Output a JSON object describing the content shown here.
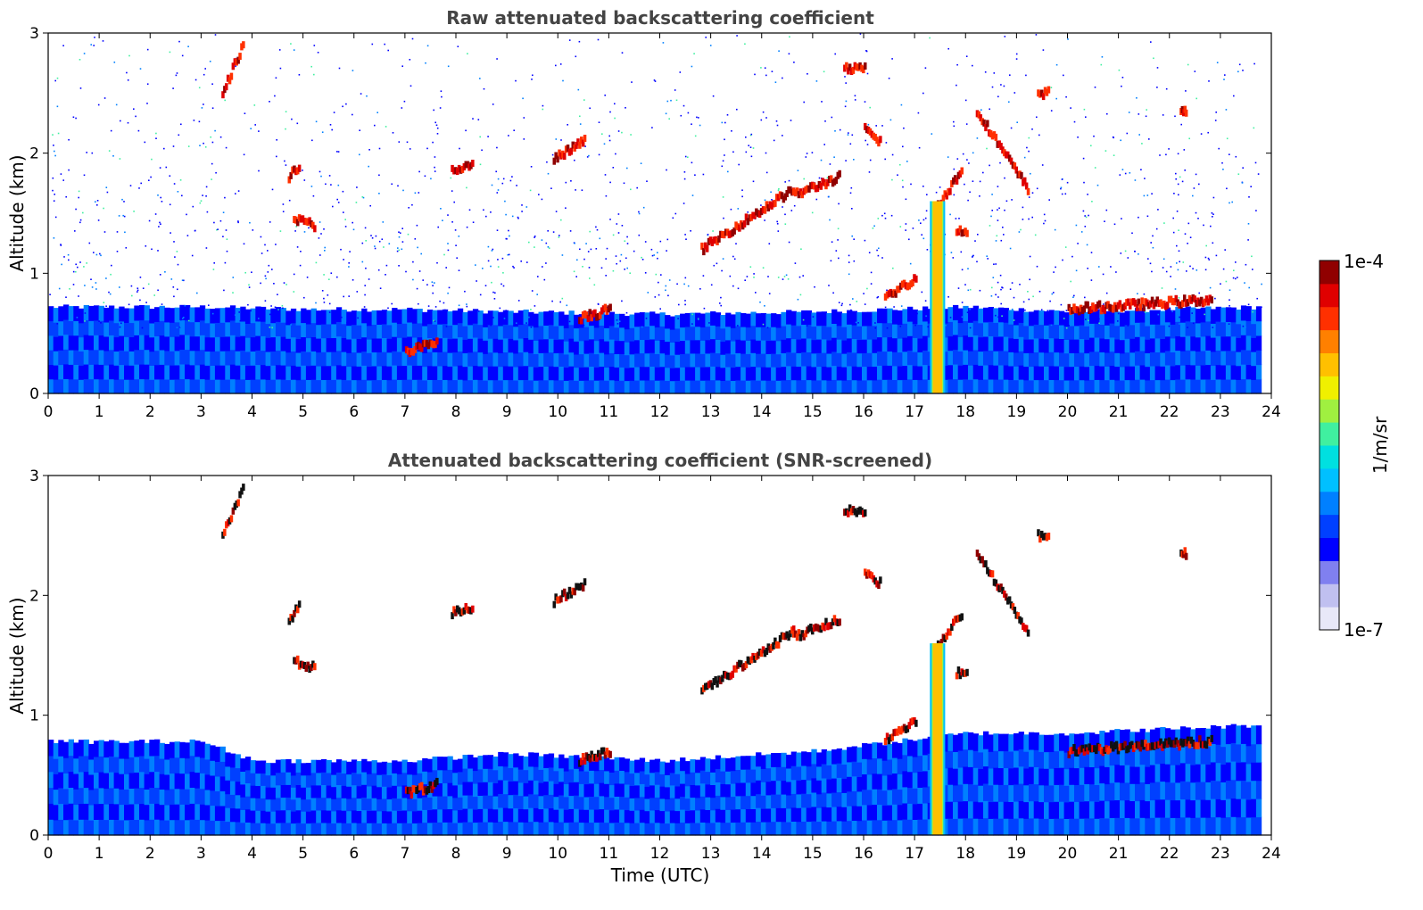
{
  "chart_data": [
    {
      "type": "heatmap",
      "title": "Raw attenuated backscattering coefficient",
      "xlabel": "",
      "ylabel": "Altitude (km)",
      "xlim": [
        0,
        24
      ],
      "ylim": [
        0,
        3
      ],
      "xticks": [
        "0",
        "1",
        "2",
        "3",
        "4",
        "5",
        "6",
        "7",
        "8",
        "9",
        "10",
        "11",
        "12",
        "13",
        "14",
        "15",
        "16",
        "17",
        "18",
        "19",
        "20",
        "21",
        "22",
        "23",
        "24"
      ],
      "yticks": [
        "0",
        "1",
        "2",
        "3"
      ],
      "noise": {
        "threshold_low": 0.55,
        "threshold_high": 3.0,
        "density_top": 0.75
      },
      "boundary_layer": [
        {
          "t": 0,
          "top": 0.72
        },
        {
          "t": 3,
          "top": 0.72
        },
        {
          "t": 5,
          "top": 0.7
        },
        {
          "t": 7,
          "top": 0.7
        },
        {
          "t": 9,
          "top": 0.68
        },
        {
          "t": 12,
          "top": 0.66
        },
        {
          "t": 15,
          "top": 0.68
        },
        {
          "t": 18,
          "top": 0.72
        },
        {
          "t": 20,
          "top": 0.68
        },
        {
          "t": 23.8,
          "top": 0.72
        }
      ],
      "cloud_segments": [
        {
          "t0": 3.4,
          "t1": 3.8,
          "alt0": 2.5,
          "alt1": 2.9
        },
        {
          "t0": 4.7,
          "t1": 4.9,
          "alt0": 1.8,
          "alt1": 1.9
        },
        {
          "t0": 4.8,
          "t1": 5.2,
          "alt0": 1.45,
          "alt1": 1.4
        },
        {
          "t0": 7.0,
          "t1": 7.6,
          "alt0": 0.35,
          "alt1": 0.42
        },
        {
          "t0": 7.9,
          "t1": 8.3,
          "alt0": 1.85,
          "alt1": 1.9
        },
        {
          "t0": 9.9,
          "t1": 10.5,
          "alt0": 1.95,
          "alt1": 2.1
        },
        {
          "t0": 10.4,
          "t1": 11.0,
          "alt0": 0.62,
          "alt1": 0.7
        },
        {
          "t0": 12.8,
          "t1": 14.6,
          "alt0": 1.2,
          "alt1": 1.7
        },
        {
          "t0": 14.6,
          "t1": 15.5,
          "alt0": 1.65,
          "alt1": 1.8
        },
        {
          "t0": 15.6,
          "t1": 16.0,
          "alt0": 2.7,
          "alt1": 2.7
        },
        {
          "t0": 16.0,
          "t1": 16.3,
          "alt0": 2.2,
          "alt1": 2.1
        },
        {
          "t0": 16.4,
          "t1": 17.0,
          "alt0": 0.8,
          "alt1": 0.95
        },
        {
          "t0": 17.4,
          "t1": 17.9,
          "alt0": 1.55,
          "alt1": 1.85
        },
        {
          "t0": 17.8,
          "t1": 18.0,
          "alt0": 1.35,
          "alt1": 1.35
        },
        {
          "t0": 18.2,
          "t1": 19.2,
          "alt0": 2.35,
          "alt1": 1.7
        },
        {
          "t0": 19.4,
          "t1": 19.6,
          "alt0": 2.5,
          "alt1": 2.5
        },
        {
          "t0": 20.0,
          "t1": 22.8,
          "alt0": 0.7,
          "alt1": 0.78
        },
        {
          "t0": 22.2,
          "t1": 22.3,
          "alt0": 2.35,
          "alt1": 2.35
        }
      ],
      "precip_column": {
        "t0": 17.3,
        "t1": 17.6,
        "top": 1.6
      }
    },
    {
      "type": "heatmap",
      "title": "Attenuated backscattering coefficient (SNR-screened)",
      "xlabel": "Time (UTC)",
      "ylabel": "Altitude (km)",
      "xlim": [
        0,
        24
      ],
      "ylim": [
        0,
        3
      ],
      "xticks": [
        "0",
        "1",
        "2",
        "3",
        "4",
        "5",
        "6",
        "7",
        "8",
        "9",
        "10",
        "11",
        "12",
        "13",
        "14",
        "15",
        "16",
        "17",
        "18",
        "19",
        "20",
        "21",
        "22",
        "23",
        "24"
      ],
      "yticks": [
        "0",
        "1",
        "2",
        "3"
      ],
      "boundary_layer": [
        {
          "t": 0,
          "top": 0.78
        },
        {
          "t": 3,
          "top": 0.78
        },
        {
          "t": 4,
          "top": 0.62
        },
        {
          "t": 7,
          "top": 0.62
        },
        {
          "t": 9,
          "top": 0.68
        },
        {
          "t": 12,
          "top": 0.62
        },
        {
          "t": 15,
          "top": 0.7
        },
        {
          "t": 18,
          "top": 0.85
        },
        {
          "t": 20,
          "top": 0.85
        },
        {
          "t": 23.8,
          "top": 0.92
        }
      ]
    }
  ],
  "colorbar": {
    "max_label": "1e-4",
    "min_label": "1e-7",
    "unit_label": "1/m/sr",
    "colors": [
      "#e8e8f8",
      "#c0c0f0",
      "#8080f0",
      "#0000ff",
      "#0040ff",
      "#0080ff",
      "#00c0ff",
      "#00e0e0",
      "#40f0a0",
      "#a0f040",
      "#f0f000",
      "#ffc000",
      "#ff8000",
      "#ff3000",
      "#e00000",
      "#900000"
    ]
  }
}
